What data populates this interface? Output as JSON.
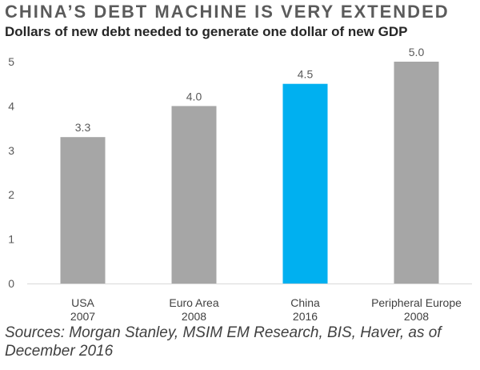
{
  "header": {
    "title": "CHINA’S DEBT MACHINE IS VERY EXTENDED",
    "subtitle": "Dollars of new debt needed to generate one dollar of new GDP"
  },
  "chart_data": {
    "type": "bar",
    "categories": [
      [
        "USA",
        "2007"
      ],
      [
        "Euro Area",
        "2008"
      ],
      [
        "China",
        "2016"
      ],
      [
        "Peripheral Europe",
        "2008"
      ]
    ],
    "values": [
      3.3,
      4.0,
      4.5,
      5.0
    ],
    "value_labels": [
      "3.3",
      "4.0",
      "4.5",
      "5.0"
    ],
    "highlight_index": 2,
    "colors": {
      "bar": "#a6a6a6",
      "highlight": "#00b0f0",
      "axis": "#d9d9d9",
      "text": "#595959"
    },
    "ylim": [
      0,
      5
    ],
    "yticks": [
      0,
      1,
      2,
      3,
      4,
      5
    ],
    "grid": false,
    "legend": "none"
  },
  "footer": {
    "source": "Sources: Morgan Stanley, MSIM EM Research, BIS, Haver, as of December 2016"
  }
}
